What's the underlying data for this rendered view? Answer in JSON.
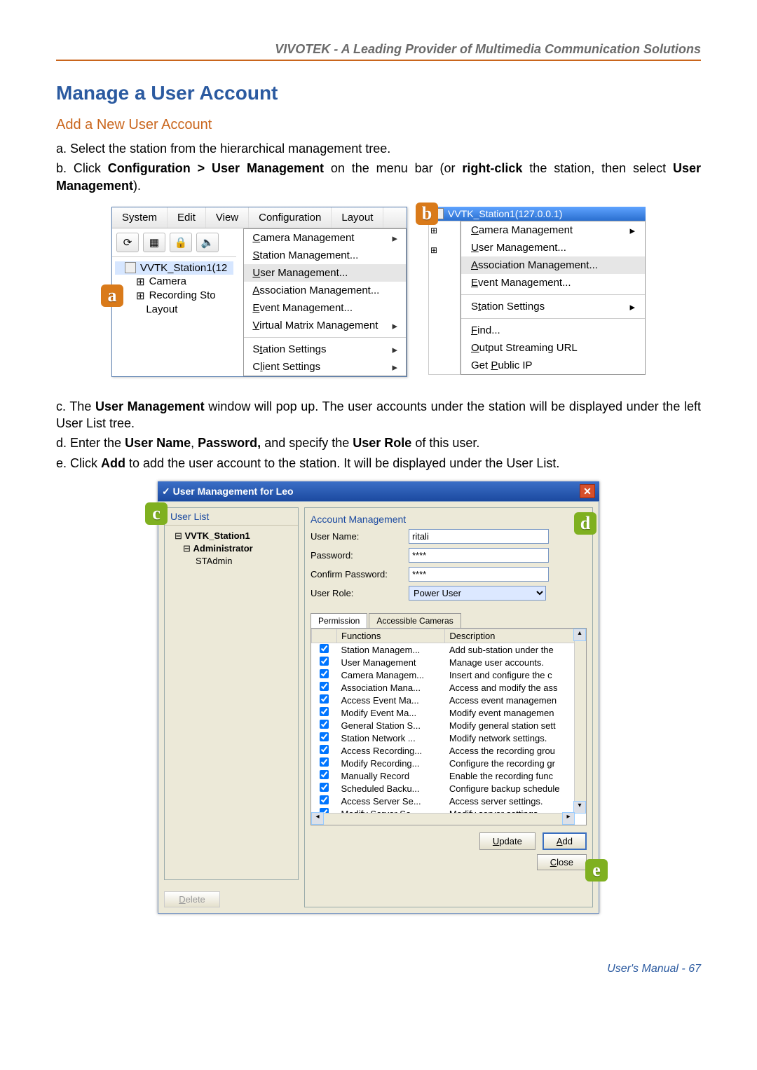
{
  "header": {
    "tagline": "VIVOTEK - A Leading Provider of Multimedia Communication Solutions"
  },
  "title": "Manage a User Account",
  "subtitle": "Add a New User Account",
  "steps": {
    "a": "a. Select the station from the hierarchical management tree.",
    "b_pre": "b. Click ",
    "b_bold1": "Configuration > User Management",
    "b_mid": " on the menu bar (or ",
    "b_bold2": "right-click",
    "b_post": " the station, then select ",
    "b_bold3": "User Management",
    "b_end": ").",
    "c_pre": "c. The ",
    "c_bold": "User Management",
    "c_post": " window will pop up. The user accounts under the station will be displayed under the left User List tree.",
    "d_pre": "d. Enter the ",
    "d_b1": "User Name",
    "d_m1": ", ",
    "d_b2": "Password,",
    "d_m2": " and specify the ",
    "d_b3": "User Role",
    "d_post": " of this user.",
    "e_pre": "e. Click ",
    "e_bold": "Add",
    "e_post": " to add the user account to the station. It will be displayed under the User List."
  },
  "menubar": {
    "system": "System",
    "edit": "Edit",
    "view": "View",
    "configuration": "Configuration",
    "layout": "Layout"
  },
  "submenu": {
    "camera": "Camera Management",
    "station": "Station Management...",
    "user": "User Management...",
    "assoc": "Association Management...",
    "event": "Event Management...",
    "vmatrix": "Virtual Matrix Management",
    "ssettings": "Station Settings",
    "csettings": "Client Settings"
  },
  "tree": {
    "root": "VVTK_Station1(12",
    "camera": "Camera",
    "rec": "Recording Sto",
    "layout": "Layout"
  },
  "ctx": {
    "title": "VVTK_Station1(127.0.0.1)",
    "camera": "Camera Management",
    "user": "User Management...",
    "assoc": "Association Management...",
    "event": "Event Management...",
    "ssettings": "Station Settings",
    "find": "Find...",
    "ostream": "Output Streaming URL",
    "pubip": "Get Public IP"
  },
  "dialog": {
    "title": "User Management for Leo",
    "userlist_h": "User List",
    "acct_h": "Account Management",
    "tree_root": "VVTK_Station1",
    "tree_admin": "Administrator",
    "tree_stadmin": "STAdmin",
    "lbl_user": "User Name:",
    "lbl_pass": "Password:",
    "lbl_conf": "Confirm Password:",
    "lbl_role": "User Role:",
    "val_user": "ritali",
    "val_pass": "****",
    "val_conf": "****",
    "val_role": "Power User",
    "tab_perm": "Permission",
    "tab_cam": "Accessible Cameras",
    "col_fn": "Functions",
    "col_desc": "Description",
    "rows": [
      {
        "fn": "Station Managem...",
        "desc": "Add sub-station under the"
      },
      {
        "fn": "User Management",
        "desc": "Manage user accounts."
      },
      {
        "fn": "Camera Managem...",
        "desc": "Insert and configure the c"
      },
      {
        "fn": "Association Mana...",
        "desc": "Access and modify the ass"
      },
      {
        "fn": "Access Event Ma...",
        "desc": "Access event managemen"
      },
      {
        "fn": "Modify Event Ma...",
        "desc": "Modify event managemen"
      },
      {
        "fn": "General Station S...",
        "desc": "Modify general station sett"
      },
      {
        "fn": "Station Network ...",
        "desc": "Modify network settings."
      },
      {
        "fn": "Access Recording...",
        "desc": "Access the recording grou"
      },
      {
        "fn": "Modify Recording...",
        "desc": "Configure the recording gr"
      },
      {
        "fn": "Manually Record",
        "desc": "Enable the recording func"
      },
      {
        "fn": "Scheduled Backu...",
        "desc": "Configure backup schedule"
      },
      {
        "fn": "Access Server Se...",
        "desc": "Access server settings."
      },
      {
        "fn": "Modify Server Se...",
        "desc": "Modify server settings."
      }
    ],
    "btn_delete": "Delete",
    "btn_update": "Update",
    "btn_add": "Add",
    "btn_close": "Close"
  },
  "badges": {
    "a": "a",
    "b": "b",
    "c": "c",
    "d": "d",
    "e": "e"
  },
  "footer": {
    "label": "User's Manual - 67"
  }
}
